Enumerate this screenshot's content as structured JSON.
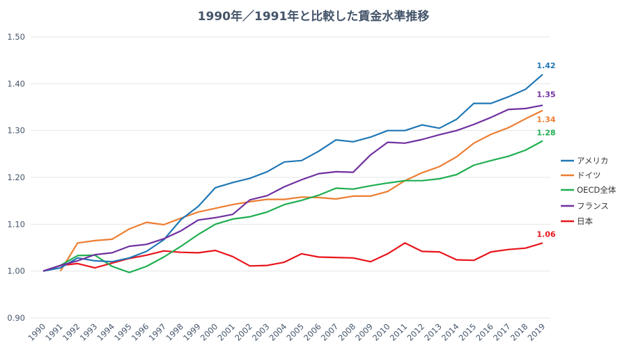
{
  "chart_data": {
    "type": "line",
    "title": "1990年／1991年と比較した賃金水準推移",
    "xlabel": "",
    "ylabel": "",
    "ylim": [
      0.9,
      1.5
    ],
    "yticks": [
      "0.90",
      "1.00",
      "1.10",
      "1.20",
      "1.30",
      "1.40",
      "1.50"
    ],
    "grid": true,
    "legend": "right",
    "categories": [
      "1990",
      "1991",
      "1992",
      "1993",
      "1994",
      "1995",
      "1996",
      "1997",
      "1998",
      "1999",
      "2000",
      "2001",
      "2002",
      "2003",
      "2004",
      "2005",
      "2006",
      "2007",
      "2008",
      "2009",
      "2010",
      "2011",
      "2012",
      "2013",
      "2014",
      "2015",
      "2016",
      "2017",
      "2018",
      "2019"
    ],
    "series": [
      {
        "name": "アメリカ",
        "color": "#1f77b4",
        "end_label": "1.42",
        "values": [
          1.0,
          1.007,
          1.028,
          1.022,
          1.02,
          1.028,
          1.042,
          1.067,
          1.11,
          1.138,
          1.178,
          1.189,
          1.198,
          1.212,
          1.233,
          1.236,
          1.256,
          1.28,
          1.276,
          1.286,
          1.3,
          1.3,
          1.312,
          1.305,
          1.324,
          1.358,
          1.358,
          1.372,
          1.388,
          1.42
        ]
      },
      {
        "name": "ドイツ",
        "color": "#ed7d31",
        "end_label": "1.34",
        "values": [
          null,
          1.0,
          1.06,
          1.065,
          1.068,
          1.09,
          1.104,
          1.099,
          1.113,
          1.126,
          1.134,
          1.142,
          1.148,
          1.153,
          1.153,
          1.158,
          1.157,
          1.154,
          1.16,
          1.16,
          1.17,
          1.193,
          1.21,
          1.223,
          1.244,
          1.273,
          1.292,
          1.306,
          1.325,
          1.343
        ]
      },
      {
        "name": "OECD全体",
        "color": "#1fae4f",
        "end_label": "1.28",
        "values": [
          1.0,
          1.012,
          1.033,
          1.034,
          1.01,
          0.997,
          1.01,
          1.03,
          1.053,
          1.078,
          1.1,
          1.111,
          1.116,
          1.126,
          1.142,
          1.151,
          1.162,
          1.177,
          1.175,
          1.182,
          1.188,
          1.193,
          1.193,
          1.197,
          1.206,
          1.226,
          1.236,
          1.245,
          1.258,
          1.278
        ]
      },
      {
        "name": "フランス",
        "color": "#7030a0",
        "end_label": "1.35",
        "values": [
          1.0,
          1.012,
          1.022,
          1.035,
          1.039,
          1.053,
          1.057,
          1.069,
          1.086,
          1.109,
          1.114,
          1.121,
          1.152,
          1.161,
          1.18,
          1.195,
          1.208,
          1.212,
          1.211,
          1.248,
          1.275,
          1.273,
          1.281,
          1.291,
          1.3,
          1.313,
          1.328,
          1.345,
          1.347,
          1.354
        ]
      },
      {
        "name": "日本",
        "color": "#e8141b",
        "end_label": "1.06",
        "values": [
          1.0,
          1.012,
          1.016,
          1.007,
          1.017,
          1.027,
          1.034,
          1.043,
          1.04,
          1.039,
          1.044,
          1.031,
          1.011,
          1.012,
          1.019,
          1.037,
          1.03,
          1.029,
          1.028,
          1.02,
          1.037,
          1.06,
          1.042,
          1.041,
          1.024,
          1.023,
          1.041,
          1.046,
          1.049,
          1.06
        ]
      }
    ]
  }
}
